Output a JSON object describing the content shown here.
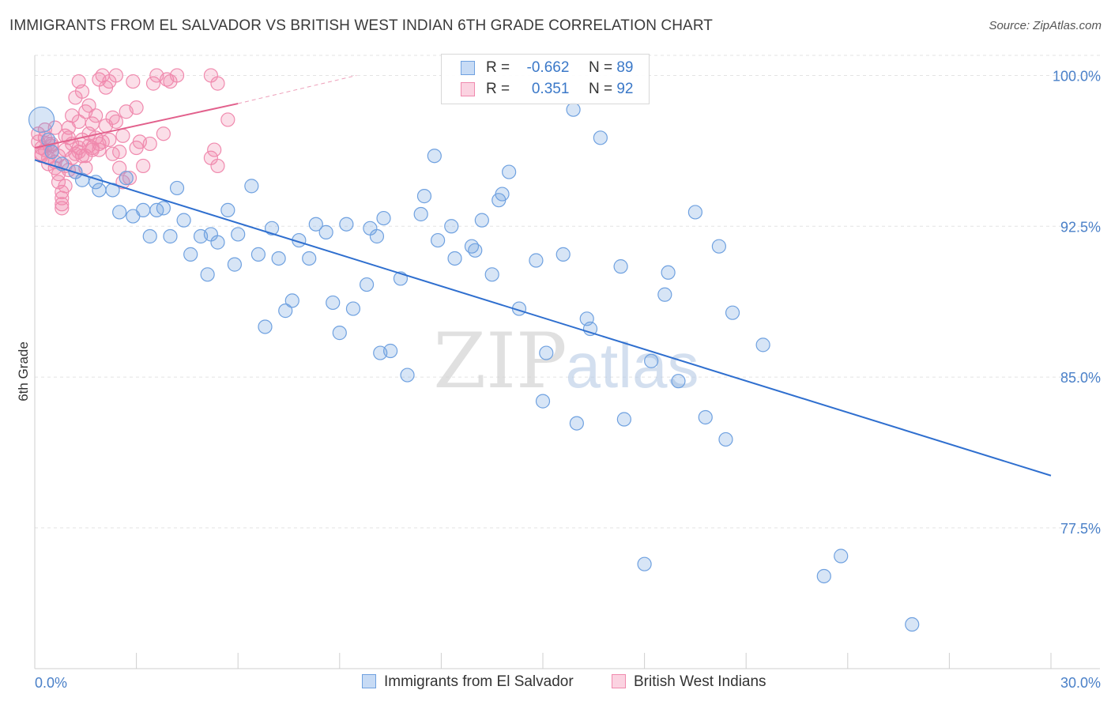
{
  "title": "IMMIGRANTS FROM EL SALVADOR VS BRITISH WEST INDIAN 6TH GRADE CORRELATION CHART",
  "source": "Source: ZipAtlas.com",
  "watermark": {
    "zip": "ZIP",
    "atlas": "atlas"
  },
  "colors": {
    "blue": "#6fa1e0",
    "blue_line": "#2f6fcf",
    "pink": "#f08aae",
    "pink_line": "#e2608c",
    "tick": "#4a80c8"
  },
  "legend": {
    "rows": [
      {
        "r_label": "R =",
        "r_value": "-0.662",
        "n_label": "N =",
        "n_value": "89"
      },
      {
        "r_label": "R =",
        "r_value": "0.351",
        "n_label": "N =",
        "n_value": "92"
      }
    ]
  },
  "bottom_legend": [
    "Immigrants from El Salvador",
    "British West Indians"
  ],
  "chart_data": {
    "type": "scatter",
    "title": "IMMIGRANTS FROM EL SALVADOR VS BRITISH WEST INDIAN 6TH GRADE CORRELATION CHART",
    "xlabel": "",
    "ylabel": "6th Grade",
    "xlim": [
      0,
      30
    ],
    "ylim": [
      70.5,
      101
    ],
    "x_tick_labels": [
      "0.0%",
      "30.0%"
    ],
    "y_ticks": [
      100.0,
      92.5,
      85.0,
      77.5
    ],
    "y_tick_labels": [
      "100.0%",
      "92.5%",
      "85.0%",
      "77.5%"
    ],
    "grid": true,
    "legend_placement": "top-center",
    "series": [
      {
        "name": "Immigrants from El Salvador",
        "color": "#6fa1e0",
        "trend": {
          "x": [
            0,
            30
          ],
          "y": [
            95.8,
            80.1
          ]
        },
        "points": [
          [
            0.2,
            97.8
          ],
          [
            0.4,
            96.8
          ],
          [
            0.5,
            96.2
          ],
          [
            0.8,
            95.6
          ],
          [
            1.2,
            95.2
          ],
          [
            1.4,
            94.8
          ],
          [
            1.8,
            94.7
          ],
          [
            1.9,
            94.3
          ],
          [
            2.3,
            94.3
          ],
          [
            2.7,
            94.9
          ],
          [
            2.5,
            93.2
          ],
          [
            2.9,
            93.0
          ],
          [
            3.2,
            93.3
          ],
          [
            3.4,
            92.0
          ],
          [
            3.6,
            93.3
          ],
          [
            3.8,
            93.4
          ],
          [
            4.0,
            92.0
          ],
          [
            4.2,
            94.4
          ],
          [
            4.4,
            92.8
          ],
          [
            4.6,
            91.1
          ],
          [
            4.9,
            92.0
          ],
          [
            5.1,
            90.1
          ],
          [
            5.2,
            92.1
          ],
          [
            5.4,
            91.7
          ],
          [
            5.7,
            93.3
          ],
          [
            5.9,
            90.6
          ],
          [
            6.0,
            92.1
          ],
          [
            6.4,
            94.5
          ],
          [
            6.6,
            91.1
          ],
          [
            6.8,
            87.5
          ],
          [
            7.0,
            92.4
          ],
          [
            7.2,
            90.9
          ],
          [
            7.4,
            88.3
          ],
          [
            7.6,
            88.8
          ],
          [
            7.8,
            91.8
          ],
          [
            8.1,
            90.9
          ],
          [
            8.3,
            92.6
          ],
          [
            8.6,
            92.2
          ],
          [
            8.8,
            88.7
          ],
          [
            9.0,
            87.2
          ],
          [
            9.2,
            92.6
          ],
          [
            9.4,
            88.4
          ],
          [
            9.8,
            89.6
          ],
          [
            9.9,
            92.4
          ],
          [
            10.1,
            92.0
          ],
          [
            10.3,
            92.9
          ],
          [
            10.2,
            86.2
          ],
          [
            10.5,
            86.3
          ],
          [
            10.8,
            89.9
          ],
          [
            11.0,
            85.1
          ],
          [
            11.4,
            93.1
          ],
          [
            11.5,
            94.0
          ],
          [
            11.8,
            96.0
          ],
          [
            11.9,
            91.8
          ],
          [
            12.3,
            92.5
          ],
          [
            12.4,
            90.9
          ],
          [
            12.9,
            91.5
          ],
          [
            13.0,
            91.3
          ],
          [
            13.2,
            92.8
          ],
          [
            13.5,
            90.1
          ],
          [
            13.7,
            93.8
          ],
          [
            13.8,
            94.1
          ],
          [
            14.3,
            88.4
          ],
          [
            14.8,
            90.8
          ],
          [
            15.0,
            83.8
          ],
          [
            15.1,
            86.2
          ],
          [
            15.6,
            91.1
          ],
          [
            15.9,
            98.3
          ],
          [
            16.0,
            82.7
          ],
          [
            16.3,
            87.9
          ],
          [
            16.4,
            87.4
          ],
          [
            16.7,
            96.9
          ],
          [
            17.3,
            90.5
          ],
          [
            17.4,
            82.9
          ],
          [
            18.2,
            85.8
          ],
          [
            18.6,
            89.1
          ],
          [
            18.7,
            90.2
          ],
          [
            19.0,
            84.8
          ],
          [
            19.5,
            93.2
          ],
          [
            19.8,
            83.0
          ],
          [
            20.4,
            81.9
          ],
          [
            20.6,
            88.2
          ],
          [
            20.2,
            91.5
          ],
          [
            21.5,
            86.6
          ],
          [
            23.3,
            75.1
          ],
          [
            23.8,
            76.1
          ],
          [
            25.9,
            72.7
          ],
          [
            18.0,
            75.7
          ],
          [
            14.0,
            95.2
          ]
        ]
      },
      {
        "name": "British West Indians",
        "color": "#f08aae",
        "trend": {
          "x": [
            0,
            6.0
          ],
          "y": [
            96.4,
            98.6
          ]
        },
        "trend_dashed": {
          "x": [
            6.0,
            9.5
          ],
          "y": [
            98.6,
            100.0
          ]
        },
        "points": [
          [
            0.1,
            97.1
          ],
          [
            0.1,
            96.7
          ],
          [
            0.2,
            96.4
          ],
          [
            0.2,
            96.0
          ],
          [
            0.3,
            96.9
          ],
          [
            0.3,
            96.3
          ],
          [
            0.4,
            96.6
          ],
          [
            0.4,
            95.9
          ],
          [
            0.5,
            96.5
          ],
          [
            0.5,
            96.2
          ],
          [
            0.6,
            95.7
          ],
          [
            0.6,
            95.4
          ],
          [
            0.7,
            96.0
          ],
          [
            0.7,
            95.1
          ],
          [
            0.7,
            94.7
          ],
          [
            0.8,
            94.2
          ],
          [
            0.8,
            93.9
          ],
          [
            0.8,
            93.6
          ],
          [
            0.8,
            93.4
          ],
          [
            0.9,
            94.5
          ],
          [
            0.9,
            95.5
          ],
          [
            0.9,
            96.3
          ],
          [
            1.0,
            96.9
          ],
          [
            1.0,
            97.4
          ],
          [
            1.1,
            98.0
          ],
          [
            1.1,
            96.6
          ],
          [
            1.1,
            95.9
          ],
          [
            1.2,
            95.2
          ],
          [
            1.2,
            96.1
          ],
          [
            1.2,
            98.9
          ],
          [
            1.3,
            99.7
          ],
          [
            1.3,
            97.7
          ],
          [
            1.3,
            96.4
          ],
          [
            1.4,
            96.8
          ],
          [
            1.4,
            99.2
          ],
          [
            1.5,
            98.2
          ],
          [
            1.5,
            96.0
          ],
          [
            1.5,
            95.4
          ],
          [
            1.6,
            96.5
          ],
          [
            1.6,
            97.1
          ],
          [
            1.6,
            98.5
          ],
          [
            1.7,
            96.3
          ],
          [
            1.7,
            97.6
          ],
          [
            1.8,
            96.9
          ],
          [
            1.8,
            98.0
          ],
          [
            1.9,
            96.6
          ],
          [
            1.9,
            96.3
          ],
          [
            1.9,
            99.8
          ],
          [
            2.0,
            100.0
          ],
          [
            2.0,
            96.7
          ],
          [
            2.1,
            99.4
          ],
          [
            2.1,
            97.5
          ],
          [
            2.2,
            99.7
          ],
          [
            2.2,
            96.8
          ],
          [
            2.3,
            97.9
          ],
          [
            2.3,
            96.1
          ],
          [
            2.4,
            97.7
          ],
          [
            2.4,
            100.0
          ],
          [
            2.5,
            96.2
          ],
          [
            2.5,
            95.4
          ],
          [
            2.6,
            97.0
          ],
          [
            2.6,
            94.7
          ],
          [
            2.7,
            98.2
          ],
          [
            2.8,
            94.9
          ],
          [
            3.0,
            96.4
          ],
          [
            3.1,
            96.7
          ],
          [
            3.0,
            98.4
          ],
          [
            3.2,
            95.5
          ],
          [
            3.4,
            96.6
          ],
          [
            3.5,
            99.6
          ],
          [
            3.6,
            100.0
          ],
          [
            3.8,
            97.1
          ],
          [
            3.9,
            99.8
          ],
          [
            4.0,
            99.7
          ],
          [
            4.2,
            100.0
          ],
          [
            5.2,
            95.9
          ],
          [
            5.3,
            96.3
          ],
          [
            5.4,
            95.5
          ],
          [
            5.2,
            100.0
          ],
          [
            5.4,
            99.6
          ],
          [
            5.7,
            97.8
          ],
          [
            0.3,
            97.3
          ],
          [
            0.4,
            95.6
          ],
          [
            0.6,
            97.4
          ],
          [
            1.0,
            95.3
          ],
          [
            1.4,
            96.0
          ],
          [
            1.7,
            96.4
          ],
          [
            2.9,
            99.7
          ],
          [
            0.2,
            96.1
          ],
          [
            0.5,
            96.6
          ],
          [
            0.9,
            97.0
          ],
          [
            1.3,
            96.2
          ]
        ]
      }
    ]
  }
}
